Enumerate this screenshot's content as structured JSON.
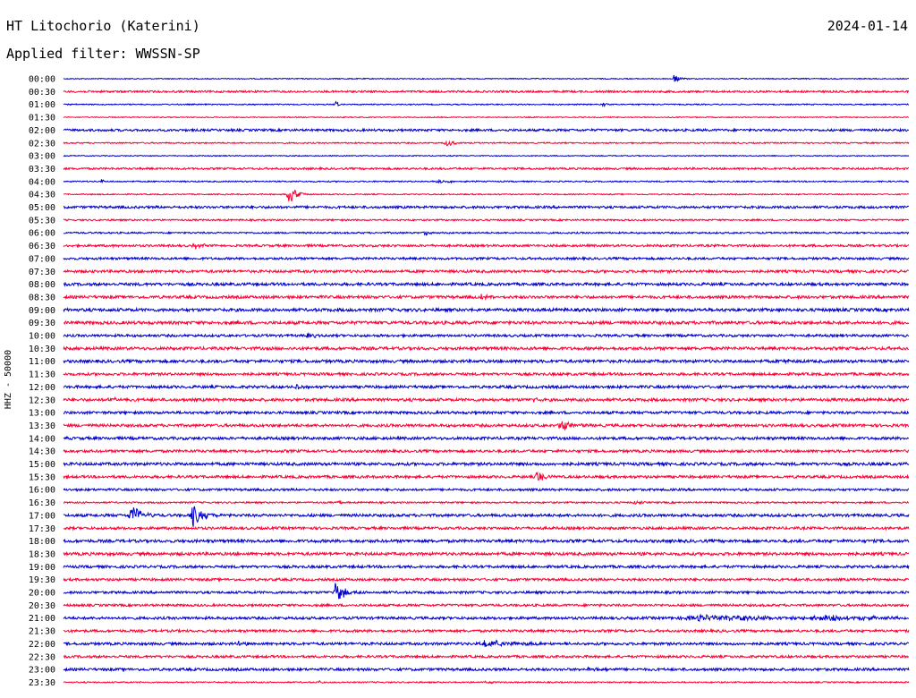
{
  "header": {
    "station_title": "HT Litochorio (Katerini)",
    "date": "2024-01-14",
    "filter_label": "Applied filter: WWSSN-SP"
  },
  "chart_data": {
    "type": "line",
    "title": "HT Litochorio (Katerini)",
    "subtitle": "Applied filter: WWSSN-SP",
    "ylabel": "HHZ - 50000",
    "date": "2024-01-14",
    "line_interval_minutes": 30,
    "colors": [
      "#0000cc",
      "#ff0033"
    ],
    "rows": [
      {
        "label": "00:00",
        "noise": 0.6,
        "events": [
          {
            "x": 0.722,
            "amp": 5,
            "width": 0.006
          }
        ]
      },
      {
        "label": "00:30",
        "noise": 1.2,
        "events": []
      },
      {
        "label": "01:00",
        "noise": 0.7,
        "events": [
          {
            "x": 0.322,
            "amp": 6,
            "width": 0.002
          },
          {
            "x": 0.638,
            "amp": 2,
            "width": 0.006
          }
        ]
      },
      {
        "label": "01:30",
        "noise": 0.6,
        "events": []
      },
      {
        "label": "02:00",
        "noise": 1.4,
        "events": []
      },
      {
        "label": "02:30",
        "noise": 0.8,
        "events": [
          {
            "x": 0.452,
            "amp": 4,
            "width": 0.01
          }
        ]
      },
      {
        "label": "03:00",
        "noise": 0.6,
        "events": [
          {
            "x": 0.915,
            "amp": 4,
            "width": 0.002
          }
        ]
      },
      {
        "label": "03:30",
        "noise": 1.2,
        "events": []
      },
      {
        "label": "04:00",
        "noise": 0.8,
        "events": [
          {
            "x": 0.045,
            "amp": 3,
            "width": 0.002
          },
          {
            "x": 0.443,
            "amp": 2,
            "width": 0.02
          }
        ]
      },
      {
        "label": "04:30",
        "noise": 0.7,
        "events": [
          {
            "x": 0.266,
            "amp": 13,
            "width": 0.008
          }
        ]
      },
      {
        "label": "05:00",
        "noise": 1.5,
        "events": []
      },
      {
        "label": "05:30",
        "noise": 1.0,
        "events": []
      },
      {
        "label": "06:00",
        "noise": 1.0,
        "events": [
          {
            "x": 0.428,
            "amp": 3,
            "width": 0.006
          }
        ]
      },
      {
        "label": "06:30",
        "noise": 1.4,
        "events": [
          {
            "x": 0.155,
            "amp": 3,
            "width": 0.012
          }
        ]
      },
      {
        "label": "07:00",
        "noise": 1.4,
        "events": []
      },
      {
        "label": "07:30",
        "noise": 1.6,
        "events": []
      },
      {
        "label": "08:00",
        "noise": 1.7,
        "events": []
      },
      {
        "label": "08:30",
        "noise": 1.7,
        "events": [
          {
            "x": 0.495,
            "amp": 3,
            "width": 0.008
          }
        ]
      },
      {
        "label": "09:00",
        "noise": 1.9,
        "events": []
      },
      {
        "label": "09:30",
        "noise": 1.9,
        "events": []
      },
      {
        "label": "10:00",
        "noise": 1.5,
        "events": [
          {
            "x": 0.289,
            "amp": 5,
            "width": 0.006
          }
        ]
      },
      {
        "label": "10:30",
        "noise": 1.8,
        "events": []
      },
      {
        "label": "11:00",
        "noise": 1.8,
        "events": [
          {
            "x": 0.848,
            "amp": 3,
            "width": 0.008
          }
        ]
      },
      {
        "label": "11:30",
        "noise": 1.6,
        "events": []
      },
      {
        "label": "12:00",
        "noise": 1.7,
        "events": [
          {
            "x": 0.276,
            "amp": 4,
            "width": 0.006
          }
        ]
      },
      {
        "label": "12:30",
        "noise": 1.8,
        "events": [
          {
            "x": 0.053,
            "amp": 3,
            "width": 0.008
          },
          {
            "x": 0.557,
            "amp": 4,
            "width": 0.002
          }
        ]
      },
      {
        "label": "13:00",
        "noise": 1.6,
        "events": []
      },
      {
        "label": "13:30",
        "noise": 1.7,
        "events": [
          {
            "x": 0.588,
            "amp": 6,
            "width": 0.012
          }
        ]
      },
      {
        "label": "14:00",
        "noise": 1.7,
        "events": []
      },
      {
        "label": "14:30",
        "noise": 1.6,
        "events": []
      },
      {
        "label": "15:00",
        "noise": 1.8,
        "events": []
      },
      {
        "label": "15:30",
        "noise": 1.6,
        "events": [
          {
            "x": 0.56,
            "amp": 7,
            "width": 0.008
          }
        ]
      },
      {
        "label": "16:00",
        "noise": 1.4,
        "events": []
      },
      {
        "label": "16:30",
        "noise": 1.0,
        "events": [
          {
            "x": 0.325,
            "amp": 3,
            "width": 0.002
          },
          {
            "x": 0.675,
            "amp": 3,
            "width": 0.006
          }
        ]
      },
      {
        "label": "17:00",
        "noise": 1.7,
        "events": [
          {
            "x": 0.08,
            "amp": 12,
            "width": 0.012
          },
          {
            "x": 0.152,
            "amp": 14,
            "width": 0.012
          }
        ]
      },
      {
        "label": "17:30",
        "noise": 1.6,
        "events": []
      },
      {
        "label": "18:00",
        "noise": 1.8,
        "events": []
      },
      {
        "label": "18:30",
        "noise": 1.8,
        "events": []
      },
      {
        "label": "19:00",
        "noise": 1.6,
        "events": []
      },
      {
        "label": "19:30",
        "noise": 1.5,
        "events": []
      },
      {
        "label": "20:00",
        "noise": 1.5,
        "events": [
          {
            "x": 0.322,
            "amp": 12,
            "width": 0.01
          }
        ]
      },
      {
        "label": "20:30",
        "noise": 1.4,
        "events": []
      },
      {
        "label": "21:00",
        "noise": 1.6,
        "events": [
          {
            "x": 0.755,
            "amp": 3,
            "width": 0.12
          },
          {
            "x": 0.9,
            "amp": 3,
            "width": 0.06
          }
        ]
      },
      {
        "label": "21:30",
        "noise": 1.5,
        "events": []
      },
      {
        "label": "22:00",
        "noise": 1.6,
        "events": [
          {
            "x": 0.208,
            "amp": 3,
            "width": 0.006
          },
          {
            "x": 0.5,
            "amp": 4,
            "width": 0.04
          }
        ]
      },
      {
        "label": "22:30",
        "noise": 1.4,
        "events": []
      },
      {
        "label": "23:00",
        "noise": 1.6,
        "events": [
          {
            "x": 0.62,
            "amp": 3,
            "width": 0.01
          }
        ]
      },
      {
        "label": "23:30",
        "noise": 0.8,
        "events": [
          {
            "x": 0.303,
            "amp": 2,
            "width": 0.004
          },
          {
            "x": 0.5,
            "amp": 2,
            "width": 0.004
          }
        ]
      }
    ]
  }
}
